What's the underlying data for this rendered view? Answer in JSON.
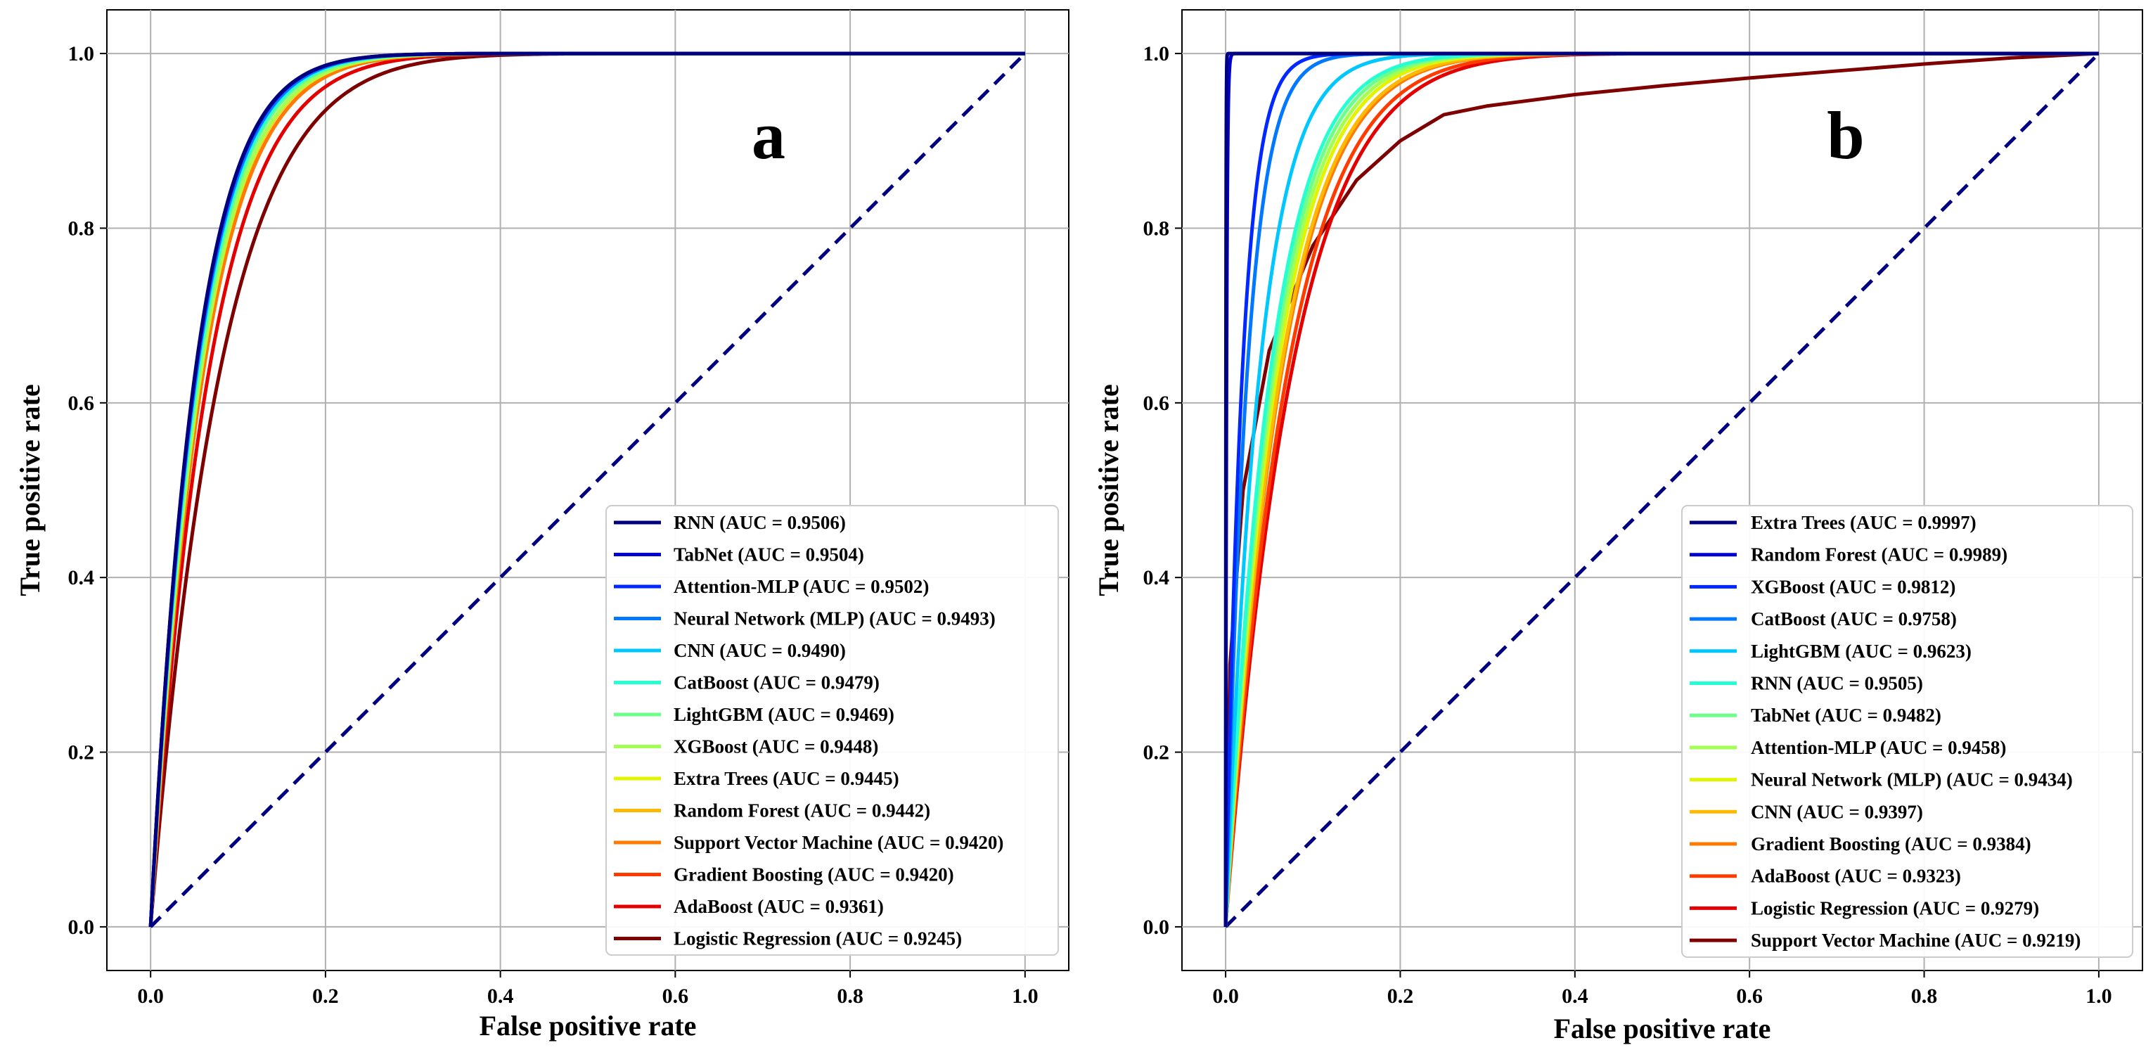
{
  "chart_data": [
    {
      "type": "line",
      "panel_label": "a",
      "xlabel": "False positive rate",
      "ylabel": "True positive rate",
      "xlim": [
        -0.05,
        1.05
      ],
      "ylim": [
        -0.05,
        1.05
      ],
      "xticks": [
        "0.0",
        "0.2",
        "0.4",
        "0.6",
        "0.8",
        "1.0"
      ],
      "yticks": [
        "0.0",
        "0.2",
        "0.4",
        "0.6",
        "0.8",
        "1.0"
      ],
      "grid": true,
      "legend_position": "lower right",
      "reference_line": {
        "x": [
          0,
          1
        ],
        "y": [
          0,
          1
        ],
        "style": "dashed",
        "color": "#000080"
      },
      "series": [
        {
          "name": "RNN (AUC = 0.9506)",
          "model": "RNN",
          "auc": 0.9506,
          "color": "#00007f"
        },
        {
          "name": "TabNet (AUC = 0.9504)",
          "model": "TabNet",
          "auc": 0.9504,
          "color": "#0000d1"
        },
        {
          "name": "Attention-MLP (AUC = 0.9502)",
          "model": "Attention-MLP",
          "auc": 0.9502,
          "color": "#0028ff"
        },
        {
          "name": "Neural Network (MLP) (AUC = 0.9493)",
          "model": "Neural Network (MLP)",
          "auc": 0.9493,
          "color": "#0078ff"
        },
        {
          "name": "CNN (AUC = 0.9490)",
          "model": "CNN",
          "auc": 0.949,
          "color": "#00c8ff"
        },
        {
          "name": "CatBoost (AUC = 0.9479)",
          "model": "CatBoost",
          "auc": 0.9479,
          "color": "#26ffd1"
        },
        {
          "name": "LightGBM (AUC = 0.9469)",
          "model": "LightGBM",
          "auc": 0.9469,
          "color": "#6dff8a"
        },
        {
          "name": "XGBoost (AUC = 0.9448)",
          "model": "XGBoost",
          "auc": 0.9448,
          "color": "#a4ff53"
        },
        {
          "name": "Extra Trees (AUC = 0.9445)",
          "model": "Extra Trees",
          "auc": 0.9445,
          "color": "#e2f500"
        },
        {
          "name": "Random Forest (AUC = 0.9442)",
          "model": "Random Forest",
          "auc": 0.9442,
          "color": "#ffb900"
        },
        {
          "name": "Support Vector Machine (AUC = 0.9420)",
          "model": "Support Vector Machine",
          "auc": 0.942,
          "color": "#ff7a00"
        },
        {
          "name": "Gradient Boosting (AUC = 0.9420)",
          "model": "Gradient Boosting",
          "auc": 0.942,
          "color": "#ff3b00"
        },
        {
          "name": "AdaBoost (AUC = 0.9361)",
          "model": "AdaBoost",
          "auc": 0.9361,
          "color": "#e40000"
        },
        {
          "name": "Logistic Regression (AUC = 0.9245)",
          "model": "Logistic Regression",
          "auc": 0.9245,
          "color": "#7f0000"
        }
      ]
    },
    {
      "type": "line",
      "panel_label": "b",
      "xlabel": "False positive rate",
      "ylabel": "True positive rate",
      "xlim": [
        -0.05,
        1.05
      ],
      "ylim": [
        -0.05,
        1.05
      ],
      "xticks": [
        "0.0",
        "0.2",
        "0.4",
        "0.6",
        "0.8",
        "1.0"
      ],
      "yticks": [
        "0.0",
        "0.2",
        "0.4",
        "0.6",
        "0.8",
        "1.0"
      ],
      "grid": true,
      "legend_position": "lower right",
      "reference_line": {
        "x": [
          0,
          1
        ],
        "y": [
          0,
          1
        ],
        "style": "dashed",
        "color": "#000080"
      },
      "series": [
        {
          "name": "Extra Trees (AUC = 0.9997)",
          "model": "Extra Trees",
          "auc": 0.9997,
          "color": "#00007f"
        },
        {
          "name": "Random Forest (AUC = 0.9989)",
          "model": "Random Forest",
          "auc": 0.9989,
          "color": "#0000d1"
        },
        {
          "name": "XGBoost (AUC = 0.9812)",
          "model": "XGBoost",
          "auc": 0.9812,
          "color": "#0028ff"
        },
        {
          "name": "CatBoost (AUC = 0.9758)",
          "model": "CatBoost",
          "auc": 0.9758,
          "color": "#0078ff"
        },
        {
          "name": "LightGBM (AUC = 0.9623)",
          "model": "LightGBM",
          "auc": 0.9623,
          "color": "#00c8ff"
        },
        {
          "name": "RNN (AUC = 0.9505)",
          "model": "RNN",
          "auc": 0.9505,
          "color": "#26ffd1"
        },
        {
          "name": "TabNet (AUC = 0.9482)",
          "model": "TabNet",
          "auc": 0.9482,
          "color": "#6dff8a"
        },
        {
          "name": "Attention-MLP (AUC = 0.9458)",
          "model": "Attention-MLP",
          "auc": 0.9458,
          "color": "#a4ff53"
        },
        {
          "name": "Neural Network (MLP) (AUC = 0.9434)",
          "model": "Neural Network (MLP)",
          "auc": 0.9434,
          "color": "#e2f500"
        },
        {
          "name": "CNN (AUC = 0.9397)",
          "model": "CNN",
          "auc": 0.9397,
          "color": "#ffb900"
        },
        {
          "name": "Gradient Boosting (AUC = 0.9384)",
          "model": "Gradient Boosting",
          "auc": 0.9384,
          "color": "#ff7a00"
        },
        {
          "name": "AdaBoost (AUC = 0.9323)",
          "model": "AdaBoost",
          "auc": 0.9323,
          "color": "#ff3b00"
        },
        {
          "name": "Logistic Regression (AUC = 0.9279)",
          "model": "Logistic Regression",
          "auc": 0.9279,
          "color": "#e40000"
        },
        {
          "name": "Support Vector Machine (AUC = 0.9219)",
          "model": "Support Vector Machine",
          "auc": 0.9219,
          "color": "#7f0000",
          "curve": {
            "x": [
              0,
              0.005,
              0.02,
              0.05,
              0.1,
              0.15,
              0.2,
              0.25,
              0.3,
              0.4,
              0.5,
              0.6,
              0.7,
              0.8,
              0.9,
              1.0
            ],
            "y": [
              0,
              0.3,
              0.5,
              0.66,
              0.78,
              0.855,
              0.9,
              0.93,
              0.94,
              0.953,
              0.963,
              0.972,
              0.98,
              0.988,
              0.995,
              1.0
            ]
          }
        }
      ]
    }
  ]
}
